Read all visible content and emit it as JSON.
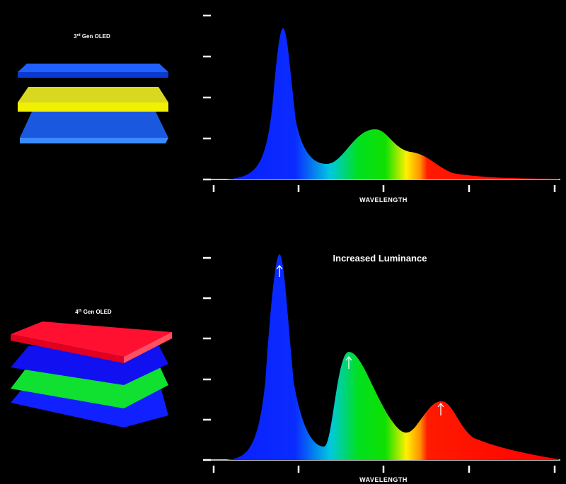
{
  "panels": [
    {
      "layer_label": {
        "number": "3",
        "suffix": "rd",
        "text": "Gen OLED"
      },
      "x_axis_title": "WAVELENGTH"
    },
    {
      "layer_label": {
        "number": "4",
        "suffix": "th",
        "text": "Gen OLED"
      },
      "x_axis_title": "WAVELENGTH",
      "annotation": "Increased Luminance"
    }
  ]
}
